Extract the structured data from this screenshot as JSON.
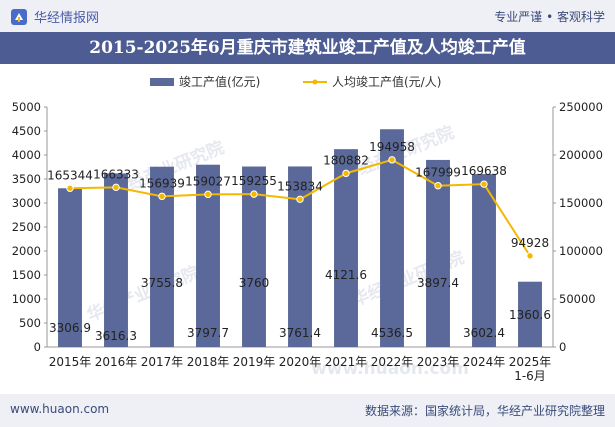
{
  "header": {
    "brand_name": "华经情报网",
    "tagline": "专业严谨 • 客观科学",
    "title": "2015-2025年6月重庆市建筑业竣工产值及人均竣工产值"
  },
  "footer": {
    "url": "www.huaon.com",
    "source": "数据来源：国家统计局，华经产业研究院整理"
  },
  "watermarks": [
    "华经产业研究院",
    "华经产业研究院",
    "华经产业研究院",
    "华经产业研究院",
    "www.huaon.com"
  ],
  "colors": {
    "bar": "#5a6999",
    "line": "#f5b800",
    "accent": "#4d5d93"
  },
  "chart_data": {
    "type": "bar",
    "categories": [
      "2015年",
      "2016年",
      "2017年",
      "2018年",
      "2019年",
      "2020年",
      "2021年",
      "2022年",
      "2023年",
      "2024年",
      "2025年\n1-6月"
    ],
    "series": [
      {
        "name": "竣工产值(亿元)",
        "type": "bar",
        "axis": "left",
        "values": [
          3306.9,
          3616.3,
          3755.8,
          3797.7,
          3760,
          3761.4,
          4121.6,
          4536.5,
          3897.4,
          3602.4,
          1360.6
        ]
      },
      {
        "name": "人均竣工产值(元/人)",
        "type": "line",
        "axis": "right",
        "values": [
          165344,
          166333,
          156939,
          159027,
          159255,
          153834,
          180882,
          194958,
          167999,
          169638,
          94928
        ]
      }
    ],
    "bar_label_text": [
      "3306.9",
      "3616.3",
      "3755.8",
      "3797.7",
      "3760",
      "3761.4",
      "4121.6",
      "4536.5",
      "3897.4",
      "3602.4",
      "1360.6"
    ],
    "line_label_text": [
      "165344",
      "166333",
      "156939",
      "159027",
      "159255",
      "153834",
      "180882",
      "194958",
      "167999",
      "169638",
      "94928"
    ],
    "y_left": {
      "min": 0,
      "max": 5000,
      "ticks": [
        "0",
        "500",
        "1000",
        "1500",
        "2000",
        "2500",
        "3000",
        "3500",
        "4000",
        "4500",
        "5000"
      ]
    },
    "y_right": {
      "min": 0,
      "max": 250000,
      "ticks": [
        "0",
        "50000",
        "100000",
        "150000",
        "200000",
        "250000"
      ]
    },
    "legend_position": "top-center",
    "grid": false
  }
}
